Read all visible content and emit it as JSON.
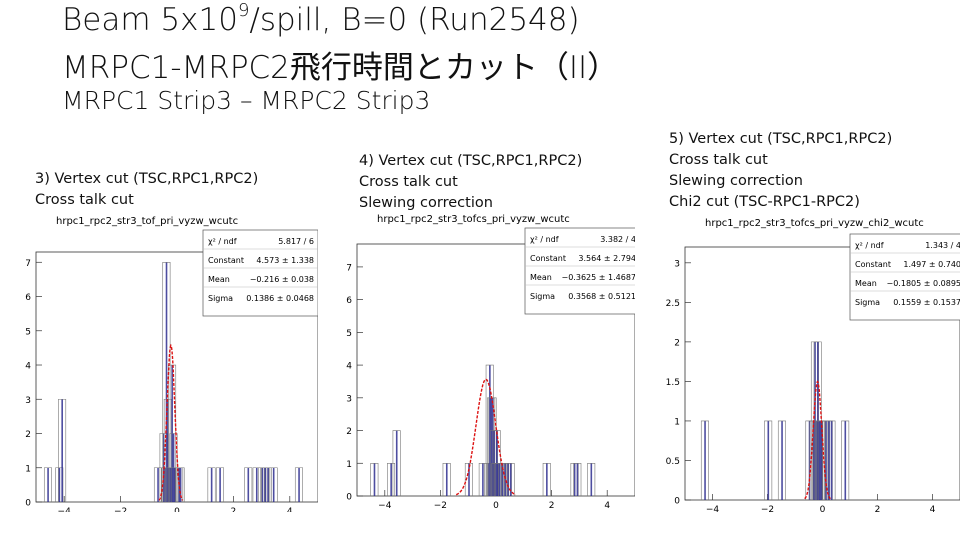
{
  "slide": {
    "title_line1_pre": "Beam 5x10",
    "title_line1_sup": "9",
    "title_line1_post": "/spill, B=0 (Run2548)",
    "title_line2": "MRPC1-MRPC2飛行時間とカット（II）",
    "subtitle": "MRPC1 Strip3 – MRPC2 Strip3"
  },
  "panels": [
    {
      "notes": [
        "3) Vertex cut (TSC,RPC1,RPC2)",
        "Cross talk cut"
      ],
      "hist_name": "hrpc1_rpc2_str3_tof_pri_vyzw_wcutc",
      "stats": [
        {
          "label": "χ² / ndf",
          "value": "5.817 / 6"
        },
        {
          "label": "Constant",
          "value": "4.573 ± 1.338"
        },
        {
          "label": "Mean",
          "value": "−0.216 ± 0.038"
        },
        {
          "label": "Sigma",
          "value": "0.1386 ± 0.0468"
        }
      ]
    },
    {
      "notes": [
        "4) Vertex cut (TSC,RPC1,RPC2)",
        "Cross talk cut",
        "Slewing correction"
      ],
      "hist_name": "hrpc1_rpc2_str3_tofcs_pri_vyzw_wcutc",
      "stats": [
        {
          "label": "χ² / ndf",
          "value": "3.382 / 4"
        },
        {
          "label": "Constant",
          "value": "3.564 ± 2.794"
        },
        {
          "label": "Mean",
          "value": "−0.3625 ± 1.4687"
        },
        {
          "label": "Sigma",
          "value": "0.3568 ± 0.5121"
        }
      ]
    },
    {
      "notes": [
        "5) Vertex cut (TSC,RPC1,RPC2)",
        "Cross talk cut",
        "Slewing correction",
        "Chi2 cut (TSC-RPC1-RPC2)"
      ],
      "hist_name": "hrpc1_rpc2_str3_tofcs_pri_vyzw_chi2_wcutc",
      "stats": [
        {
          "label": "χ² / ndf",
          "value": "1.343 / 4"
        },
        {
          "label": "Constant",
          "value": "1.497 ± 0.740"
        },
        {
          "label": "Mean",
          "value": "−0.1805 ± 0.0895"
        },
        {
          "label": "Sigma",
          "value": "0.1559 ± 0.1537"
        }
      ]
    }
  ],
  "chart_data": [
    {
      "type": "histogram",
      "title": "hrpc1_rpc2_str3_tof_pri_vyzw_wcutc",
      "xlim": [
        -5,
        5
      ],
      "ylim": [
        0,
        7.3
      ],
      "xticks": [
        -4,
        -2,
        0,
        2,
        4
      ],
      "yticks": [
        0,
        1,
        2,
        3,
        4,
        5,
        6,
        7
      ],
      "bin_width": 0.05,
      "series": [
        {
          "x": [
            -4.6,
            -4.2,
            -4.1,
            -0.7,
            -0.5,
            -0.45,
            -0.4,
            -0.35,
            -0.3,
            -0.25,
            -0.2,
            -0.15,
            -0.1,
            0.05,
            0.1,
            1.2,
            1.5,
            2.5,
            2.8,
            3.0,
            3.1,
            3.2,
            3.4,
            4.3
          ],
          "counts": [
            1,
            1,
            3,
            1,
            2,
            1,
            7,
            3,
            1,
            1,
            4,
            2,
            1,
            1,
            1,
            1,
            1,
            1,
            1,
            1,
            1,
            1,
            1,
            1
          ]
        }
      ],
      "fit": {
        "type": "gaus",
        "constant": 4.573,
        "mean": -0.216,
        "sigma": 0.1386
      }
    },
    {
      "type": "histogram",
      "title": "hrpc1_rpc2_str3_tofcs_pri_vyzw_wcutc",
      "xlim": [
        -5,
        5
      ],
      "ylim": [
        0,
        7.7
      ],
      "xticks": [
        -4,
        -2,
        0,
        2,
        4
      ],
      "yticks": [
        0,
        1,
        2,
        3,
        4,
        5,
        6,
        7
      ],
      "bin_width": 0.05,
      "series": [
        {
          "x": [
            -4.4,
            -3.8,
            -3.6,
            -1.8,
            -1.0,
            -0.5,
            -0.3,
            -0.25,
            -0.2,
            -0.15,
            -0.1,
            -0.05,
            0.0,
            0.05,
            0.1,
            0.2,
            0.3,
            0.4,
            0.5,
            1.8,
            2.8,
            2.9,
            3.4
          ],
          "counts": [
            1,
            1,
            2,
            1,
            1,
            1,
            1,
            4,
            3,
            3,
            2,
            1,
            2,
            1,
            1,
            1,
            1,
            1,
            1,
            1,
            1,
            1,
            1
          ]
        }
      ],
      "fit": {
        "type": "gaus",
        "constant": 3.564,
        "mean": -0.3625,
        "sigma": 0.3568
      }
    },
    {
      "type": "histogram",
      "title": "hrpc1_rpc2_str3_tofcs_pri_vyzw_chi2_wcutc",
      "xlim": [
        -5,
        5
      ],
      "ylim": [
        0,
        3.2
      ],
      "xticks": [
        -4,
        -2,
        0,
        2,
        4
      ],
      "yticks": [
        0,
        0.5,
        1,
        1.5,
        2,
        2.5,
        3
      ],
      "bin_width": 0.05,
      "series": [
        {
          "x": [
            -4.3,
            -2.0,
            -1.5,
            -0.5,
            -0.35,
            -0.3,
            -0.25,
            -0.2,
            -0.15,
            -0.1,
            -0.05,
            0.1,
            0.2,
            0.3,
            0.8
          ],
          "counts": [
            1,
            1,
            1,
            1,
            1,
            2,
            1,
            2,
            1,
            1,
            1,
            1,
            1,
            1,
            1
          ]
        }
      ],
      "fit": {
        "type": "gaus",
        "constant": 1.497,
        "mean": -0.1805,
        "sigma": 0.1559
      }
    }
  ]
}
